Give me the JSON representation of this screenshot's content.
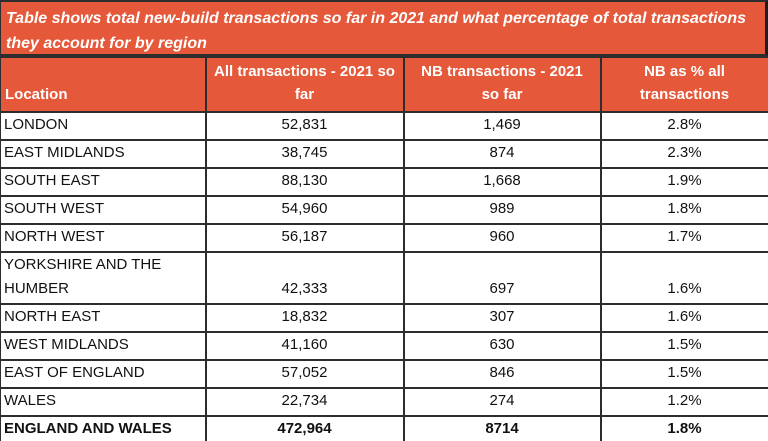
{
  "banner": {
    "text": "Table shows total new-build transactions so far in 2021 and what percentage of total transactions they account for by region"
  },
  "colors": {
    "accent_orange": "#E5583A",
    "border_dark": "#2D2D2D",
    "header_text": "#FFFFFF",
    "body_text": "#111111"
  },
  "chart_data": {
    "type": "table",
    "title": "Table shows total new-build transactions so far in 2021 and what percentage of total transactions they account for by region",
    "columns": [
      "Location",
      "All transactions - 2021 so far",
      "NB transactions - 2021 so far",
      "NB as % all transactions"
    ],
    "rows": [
      {
        "location": "LONDON",
        "all_transactions": "52,831",
        "nb_transactions": "1,469",
        "nb_pct": "2.8%",
        "bold": false
      },
      {
        "location": "EAST MIDLANDS",
        "all_transactions": "38,745",
        "nb_transactions": "874",
        "nb_pct": "2.3%",
        "bold": false
      },
      {
        "location": "SOUTH EAST",
        "all_transactions": "88,130",
        "nb_transactions": "1,668",
        "nb_pct": "1.9%",
        "bold": false
      },
      {
        "location": "SOUTH WEST",
        "all_transactions": "54,960",
        "nb_transactions": "989",
        "nb_pct": "1.8%",
        "bold": false
      },
      {
        "location": "NORTH WEST",
        "all_transactions": "56,187",
        "nb_transactions": "960",
        "nb_pct": "1.7%",
        "bold": false
      },
      {
        "location": "YORKSHIRE AND THE HUMBER",
        "all_transactions": "42,333",
        "nb_transactions": "697",
        "nb_pct": "1.6%",
        "bold": false
      },
      {
        "location": "NORTH EAST",
        "all_transactions": "18,832",
        "nb_transactions": "307",
        "nb_pct": "1.6%",
        "bold": false
      },
      {
        "location": "WEST MIDLANDS",
        "all_transactions": "41,160",
        "nb_transactions": "630",
        "nb_pct": "1.5%",
        "bold": false
      },
      {
        "location": "EAST OF ENGLAND",
        "all_transactions": "57,052",
        "nb_transactions": "846",
        "nb_pct": "1.5%",
        "bold": false
      },
      {
        "location": "WALES",
        "all_transactions": "22,734",
        "nb_transactions": "274",
        "nb_pct": "1.2%",
        "bold": false
      },
      {
        "location": "ENGLAND AND WALES",
        "all_transactions": "472,964",
        "nb_transactions": "8714",
        "nb_pct": "1.8%",
        "bold": true
      }
    ]
  }
}
